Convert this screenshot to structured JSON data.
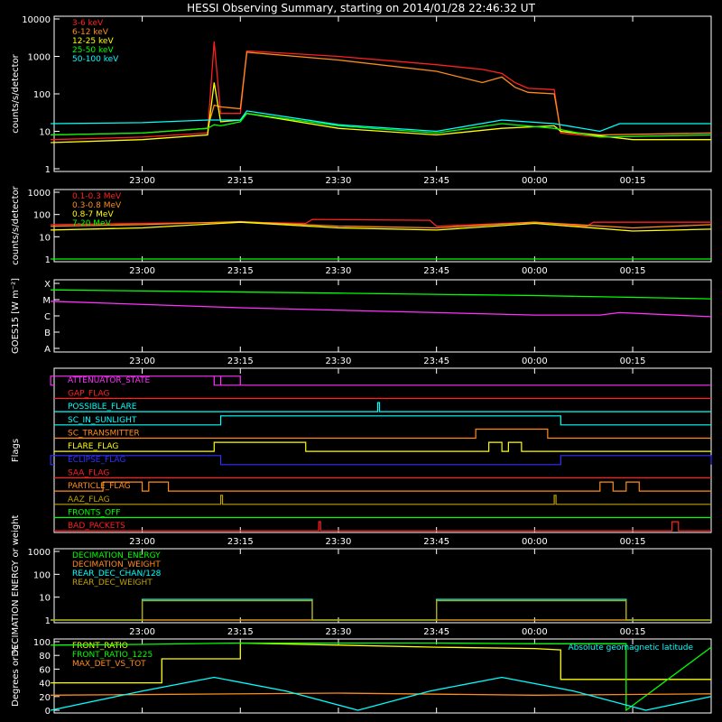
{
  "title": "HESSI Observing Summary, starting on 2014/01/28 22:46:32 UT",
  "x_axis": {
    "start": "22:46:32",
    "end": "00:27:00",
    "tick_labels": [
      "23:00",
      "23:15",
      "23:30",
      "23:45",
      "00:00",
      "00:15"
    ]
  },
  "colors": {
    "background": "#000000",
    "axes": "#ffffff",
    "red": "#ff2020",
    "orange": "#ff8c1a",
    "yellow": "#ffff00",
    "green": "#00ff00",
    "cyan": "#00ffff",
    "magenta": "#ff30ff",
    "blue": "#3030ff",
    "olive": "#c0a000"
  },
  "chart_data": [
    {
      "type": "line",
      "id": "xray-rates",
      "ylabel": "counts/s/detector",
      "y_scale": "log",
      "ylim": [
        1,
        10000
      ],
      "y_tick_labels": [
        "1",
        "10",
        "100",
        "1000",
        "10000"
      ],
      "legend_placement": "top-left",
      "series": [
        {
          "name": "3-6 keV",
          "color": "#ff2020",
          "x": [
            "22:46",
            "23:00",
            "23:10",
            "23:11",
            "23:12",
            "23:15",
            "23:16",
            "23:30",
            "23:45",
            "23:52",
            "23:55",
            "23:57",
            "23:59",
            "00:03",
            "00:04",
            "00:10",
            "00:27"
          ],
          "y": [
            6,
            7,
            9,
            2500,
            30,
            30,
            1400,
            1000,
            600,
            450,
            350,
            200,
            140,
            130,
            9,
            7,
            8
          ]
        },
        {
          "name": "6-12 keV",
          "color": "#ff8c1a",
          "x": [
            "22:46",
            "23:00",
            "23:10",
            "23:11",
            "23:12",
            "23:15",
            "23:16",
            "23:30",
            "23:45",
            "23:52",
            "23:55",
            "23:57",
            "23:59",
            "00:03",
            "00:04",
            "00:10",
            "00:27"
          ],
          "y": [
            8,
            9,
            12,
            50,
            45,
            40,
            1300,
            800,
            400,
            200,
            280,
            150,
            110,
            100,
            10,
            8,
            9
          ]
        },
        {
          "name": "12-25 keV",
          "color": "#ffff00",
          "x": [
            "22:46",
            "23:00",
            "23:10",
            "23:11",
            "23:12",
            "23:15",
            "23:16",
            "23:30",
            "23:45",
            "23:55",
            "00:03",
            "00:04",
            "00:15",
            "00:27"
          ],
          "y": [
            5,
            6,
            8,
            200,
            18,
            20,
            30,
            12,
            8,
            12,
            14,
            10,
            6,
            6
          ]
        },
        {
          "name": "25-50 keV",
          "color": "#00ff00",
          "x": [
            "22:46",
            "23:00",
            "23:10",
            "23:11",
            "23:12",
            "23:15",
            "23:16",
            "23:30",
            "23:45",
            "23:55",
            "00:03",
            "00:10",
            "00:27"
          ],
          "y": [
            8,
            9,
            12,
            15,
            14,
            18,
            30,
            14,
            9,
            16,
            12,
            7,
            8
          ]
        },
        {
          "name": "50-100 keV",
          "color": "#00ffff",
          "x": [
            "22:46",
            "23:00",
            "23:10",
            "23:11",
            "23:12",
            "23:15",
            "23:16",
            "23:30",
            "23:45",
            "23:55",
            "00:03",
            "00:10",
            "00:13",
            "00:27"
          ],
          "y": [
            16,
            17,
            20,
            20,
            20,
            20,
            35,
            15,
            10,
            20,
            16,
            10,
            16,
            16
          ]
        }
      ]
    },
    {
      "type": "line",
      "id": "gamma-rates",
      "ylabel": "counts/s/detector",
      "y_scale": "log",
      "ylim": [
        1,
        1000
      ],
      "y_tick_labels": [
        "1",
        "10",
        "100",
        "1000"
      ],
      "legend_placement": "top-left",
      "series": [
        {
          "name": "0.1-0.3 MeV",
          "color": "#ff2020",
          "x": [
            "22:46",
            "23:00",
            "23:15",
            "23:25",
            "23:26",
            "23:44",
            "23:45",
            "00:00",
            "00:08",
            "00:09",
            "00:27"
          ],
          "y": [
            35,
            40,
            45,
            40,
            60,
            55,
            30,
            45,
            30,
            45,
            45
          ]
        },
        {
          "name": "0.3-0.8 MeV",
          "color": "#ff8c1a",
          "x": [
            "22:46",
            "23:00",
            "23:15",
            "23:30",
            "23:45",
            "00:00",
            "00:15",
            "00:27"
          ],
          "y": [
            30,
            35,
            48,
            30,
            25,
            45,
            25,
            35
          ]
        },
        {
          "name": "0.8-7 MeV",
          "color": "#ffff00",
          "x": [
            "22:46",
            "23:00",
            "23:15",
            "23:30",
            "23:45",
            "00:00",
            "00:15",
            "00:27"
          ],
          "y": [
            20,
            25,
            45,
            25,
            20,
            40,
            18,
            22
          ]
        },
        {
          "name": "7-20 MeV",
          "color": "#00ff00",
          "x": [
            "22:46",
            "00:27"
          ],
          "y": [
            1,
            1
          ]
        }
      ]
    },
    {
      "type": "line",
      "id": "goes",
      "ylabel": "GOES15 [W m⁻²]",
      "y_scale": "class",
      "y_tick_labels": [
        "A",
        "B",
        "C",
        "M",
        "X"
      ],
      "series": [
        {
          "color": "#00ff00",
          "x": [
            "22:46",
            "23:30",
            "00:00",
            "00:27"
          ],
          "y_class_level": [
            3.6,
            3.4,
            3.25,
            3.05
          ]
        },
        {
          "color": "#ff30ff",
          "x": [
            "22:46",
            "23:15",
            "23:45",
            "00:00",
            "00:10",
            "00:13",
            "00:27"
          ],
          "y_class_level": [
            2.9,
            2.5,
            2.2,
            2.05,
            2.05,
            2.2,
            1.95
          ]
        }
      ]
    },
    {
      "type": "flags",
      "id": "flags",
      "ylabel": "Flags",
      "flags": [
        {
          "name": "ATTENUATOR_STATE",
          "color": "#ff30ff",
          "high": [
            [
              "23:11",
              "23:12"
            ],
            [
              "22:46",
              "23:15"
            ]
          ]
        },
        {
          "name": "GAP_FLAG",
          "color": "#ff2020",
          "high": []
        },
        {
          "name": "POSSIBLE_FLARE",
          "color": "#00ffff",
          "high": [
            [
              "23:36",
              "23:36"
            ]
          ]
        },
        {
          "name": "SC_IN_SUNLIGHT",
          "color": "#00ffff",
          "high": [
            [
              "23:12",
              "00:04"
            ]
          ]
        },
        {
          "name": "SC_TRANSMITTER",
          "color": "#ff8c1a",
          "high": [
            [
              "23:51",
              "00:02"
            ]
          ]
        },
        {
          "name": "FLARE_FLAG",
          "color": "#ffff00",
          "high": [
            [
              "23:11",
              "23:25"
            ],
            [
              "23:53",
              "23:55"
            ],
            [
              "23:56",
              "23:58"
            ]
          ]
        },
        {
          "name": "ECLIPSE_FLAG",
          "color": "#3030ff",
          "high": [
            [
              "22:46",
              "23:12"
            ],
            [
              "00:04",
              "00:27"
            ]
          ]
        },
        {
          "name": "SAA_FLAG",
          "color": "#ff2020",
          "high": []
        },
        {
          "name": "PARTICLE_FLAG",
          "color": "#ff8c1a",
          "high": [
            [
              "22:54",
              "23:00"
            ],
            [
              "23:01",
              "23:04"
            ],
            [
              "00:10",
              "00:12"
            ],
            [
              "00:14",
              "00:16"
            ]
          ]
        },
        {
          "name": "AAZ_FLAG",
          "color": "#c0a000",
          "high": [
            [
              "23:12",
              "23:12"
            ],
            [
              "00:03",
              "00:03"
            ]
          ]
        },
        {
          "name": "FRONTS_OFF",
          "color": "#00ff00",
          "high": []
        },
        {
          "name": "BAD_PACKETS",
          "color": "#ff2020",
          "high": [
            [
              "23:27",
              "23:27"
            ],
            [
              "00:21",
              "00:22"
            ]
          ]
        }
      ]
    },
    {
      "type": "line",
      "id": "decimation",
      "ylabel": "DECIMATION ENERGY or weight",
      "y_scale": "log",
      "ylim": [
        1,
        1000
      ],
      "y_tick_labels": [
        "1",
        "10",
        "100",
        "1000"
      ],
      "legend_placement": "top-left",
      "series": [
        {
          "name": "DECIMATION_ENERGY",
          "color": "#00ff00",
          "x": [
            "22:46",
            "00:27"
          ],
          "y": [
            1,
            1
          ]
        },
        {
          "name": "DECIMATION_WEIGHT",
          "color": "#ff8c1a",
          "x": [
            "22:46",
            "00:27"
          ],
          "y": [
            1,
            1
          ]
        },
        {
          "name": "REAR_DEC_CHAN/128",
          "color": "#00ffff",
          "x": [
            "22:46",
            "23:00",
            "23:00",
            "23:26",
            "23:26",
            "23:45",
            "23:45",
            "00:14",
            "00:14",
            "00:27"
          ],
          "y": [
            1,
            1,
            8,
            8,
            1,
            1,
            8,
            8,
            1,
            1
          ]
        },
        {
          "name": "REAR_DEC_WEIGHT",
          "color": "#c0a000",
          "x": [
            "22:46",
            "23:00",
            "23:00",
            "23:26",
            "23:26",
            "23:45",
            "23:45",
            "00:14",
            "00:14",
            "00:27"
          ],
          "y": [
            1,
            1,
            7,
            7,
            1,
            1,
            7,
            7,
            1,
            1
          ]
        }
      ]
    },
    {
      "type": "line",
      "id": "ratios",
      "ylabel": "Degrees or %",
      "ylim": [
        0,
        100
      ],
      "y_tick_labels": [
        "0",
        "20",
        "40",
        "60",
        "80",
        "100"
      ],
      "legend_placement": "top-left",
      "series": [
        {
          "name": "FRONT_RATIO",
          "color": "#ffff00",
          "x": [
            "22:46",
            "23:03",
            "23:03",
            "23:15",
            "23:15",
            "23:45",
            "00:00",
            "00:04",
            "00:04",
            "00:27"
          ],
          "y": [
            40,
            40,
            75,
            75,
            98,
            92,
            90,
            88,
            45,
            45
          ]
        },
        {
          "name": "FRONT_RATIO_1225",
          "color": "#00ff00",
          "x": [
            "22:46",
            "23:00",
            "23:15",
            "23:45",
            "00:00",
            "00:14",
            "00:14",
            "00:27"
          ],
          "y": [
            95,
            96,
            98,
            98,
            97,
            97,
            0,
            92
          ]
        },
        {
          "name": "MAX_DET_VS_TOT",
          "color": "#ff8c1a",
          "x": [
            "22:46",
            "23:30",
            "00:00",
            "00:27"
          ],
          "y": [
            22,
            25,
            22,
            24
          ]
        },
        {
          "name": "Absolute geomagnetic latitude",
          "color": "#00ffff",
          "x": [
            "22:46",
            "23:00",
            "23:11",
            "23:22",
            "23:33",
            "23:44",
            "23:55",
            "00:06",
            "00:17",
            "00:27"
          ],
          "y": [
            0,
            28,
            48,
            28,
            0,
            28,
            48,
            28,
            0,
            20
          ]
        }
      ]
    }
  ]
}
